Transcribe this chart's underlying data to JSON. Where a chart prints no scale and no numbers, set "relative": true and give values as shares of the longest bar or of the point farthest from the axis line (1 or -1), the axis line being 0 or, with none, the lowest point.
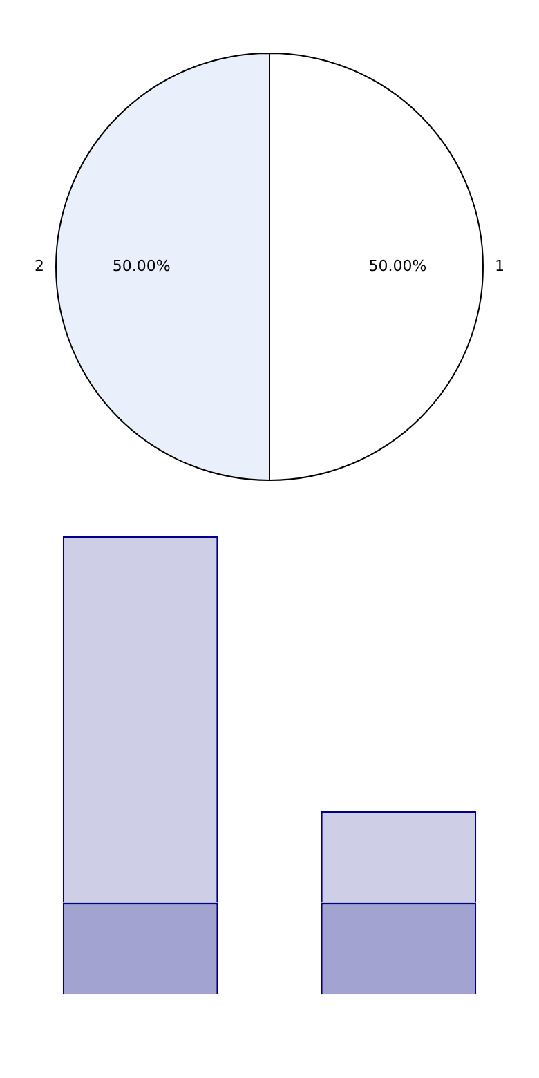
{
  "chart_data": [
    {
      "type": "pie",
      "categories": [
        "1",
        "2"
      ],
      "values": [
        50,
        50
      ],
      "colors": [
        "#ffffff",
        "#eaf0fb"
      ],
      "value_labels": [
        "50.00%",
        "50.00%"
      ],
      "legend": false
    },
    {
      "type": "bar",
      "relative": true,
      "stacked": true,
      "categories": [
        null,
        null
      ],
      "series": [
        {
          "color": "#a3a3d1",
          "values": [
            0.2,
            0.2
          ]
        },
        {
          "color": "#cecee6",
          "values": [
            0.8,
            0.2
          ]
        }
      ],
      "legend": false,
      "grid": false
    }
  ]
}
